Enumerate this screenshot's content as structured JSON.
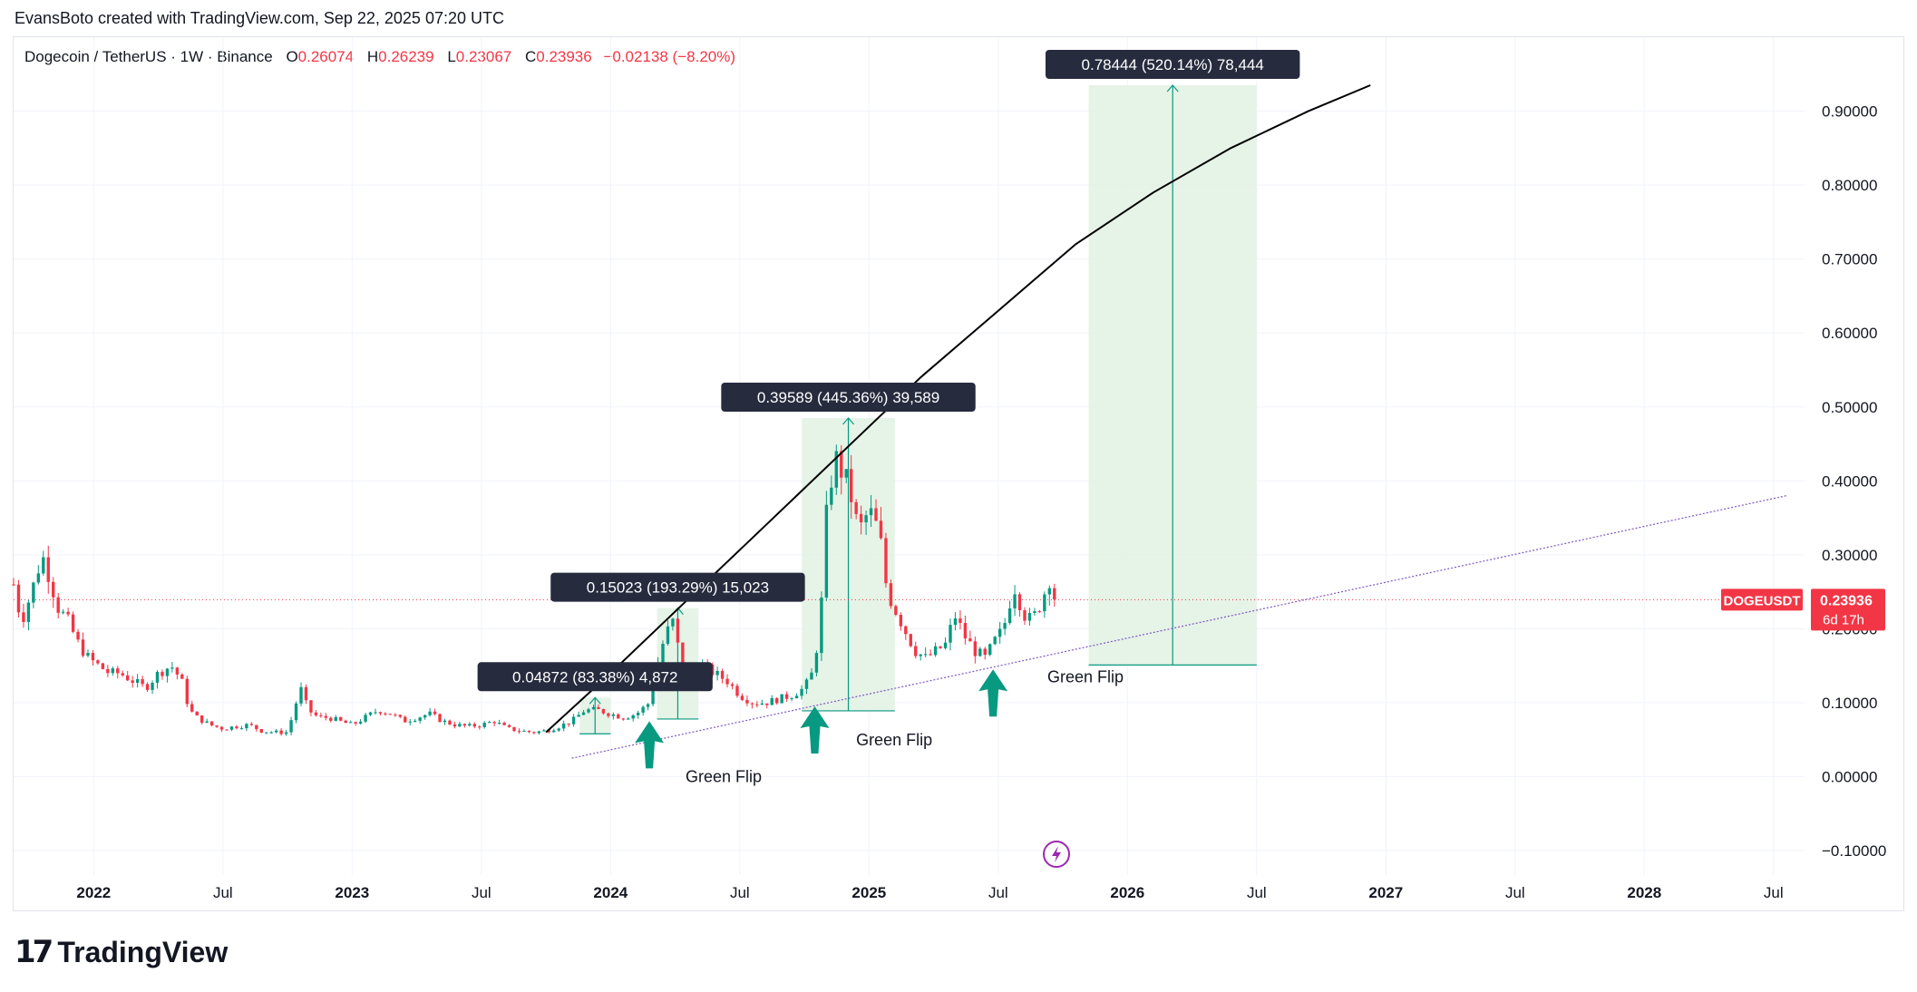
{
  "header": {
    "attribution": "EvansBoto created with TradingView.com, Sep 22, 2025 07:20 UTC"
  },
  "legend": {
    "symbol": "Dogecoin / TetherUS · 1W · Binance",
    "open_label": "O",
    "open": "0.26074",
    "high_label": "H",
    "high": "0.26239",
    "low_label": "L",
    "low": "0.23067",
    "close_label": "C",
    "close": "0.23936",
    "change": "−0.02138 (−8.20%)"
  },
  "price_tag": {
    "ticker": "DOGEUSDT",
    "price": "0.23936",
    "countdown": "6d 17h"
  },
  "footer": {
    "brand": "TradingView"
  },
  "colors": {
    "up": "#089981",
    "down": "#f23645",
    "measure_fill": "#e3f2e4",
    "measure_line": "#089981",
    "curve": "#000000",
    "trendline": "#7e57c2",
    "label_bg": "#262b3e",
    "arrow": "#089981"
  },
  "chart_data": {
    "type": "candlestick",
    "timeframe": "1W",
    "y_ticks": [
      "0.90000",
      "0.80000",
      "0.70000",
      "0.60000",
      "0.50000",
      "0.40000",
      "0.30000",
      "0.20000",
      "0.10000",
      "0.00000",
      "−0.10000"
    ],
    "y_tick_values": [
      0.9,
      0.8,
      0.7,
      0.6,
      0.5,
      0.4,
      0.3,
      0.2,
      0.1,
      0.0,
      -0.1
    ],
    "ylim": [
      -0.133,
      1.0
    ],
    "x_ticks": [
      {
        "label": "2022",
        "t": 2022.0,
        "bold": true
      },
      {
        "label": "Jul",
        "t": 2022.5,
        "bold": false
      },
      {
        "label": "2023",
        "t": 2023.0,
        "bold": true
      },
      {
        "label": "Jul",
        "t": 2023.5,
        "bold": false
      },
      {
        "label": "2024",
        "t": 2024.0,
        "bold": true
      },
      {
        "label": "Jul",
        "t": 2024.5,
        "bold": false
      },
      {
        "label": "2025",
        "t": 2025.0,
        "bold": true
      },
      {
        "label": "Jul",
        "t": 2025.5,
        "bold": false
      },
      {
        "label": "2026",
        "t": 2026.0,
        "bold": true
      },
      {
        "label": "Jul",
        "t": 2026.5,
        "bold": false
      },
      {
        "label": "2027",
        "t": 2027.0,
        "bold": true
      },
      {
        "label": "Jul",
        "t": 2027.5,
        "bold": false
      },
      {
        "label": "2028",
        "t": 2028.0,
        "bold": true
      },
      {
        "label": "Jul",
        "t": 2028.5,
        "bold": false
      }
    ],
    "xlim": [
      2021.69,
      2028.62
    ],
    "price_path": [
      [
        2021.69,
        0.26
      ],
      [
        2021.72,
        0.21
      ],
      [
        2021.76,
        0.25
      ],
      [
        2021.8,
        0.3
      ],
      [
        2021.83,
        0.27
      ],
      [
        2021.86,
        0.23
      ],
      [
        2021.9,
        0.21
      ],
      [
        2021.94,
        0.18
      ],
      [
        2021.98,
        0.16
      ],
      [
        2022.02,
        0.15
      ],
      [
        2022.06,
        0.14
      ],
      [
        2022.1,
        0.14
      ],
      [
        2022.15,
        0.13
      ],
      [
        2022.2,
        0.12
      ],
      [
        2022.25,
        0.14
      ],
      [
        2022.3,
        0.15
      ],
      [
        2022.34,
        0.13
      ],
      [
        2022.37,
        0.09
      ],
      [
        2022.4,
        0.08
      ],
      [
        2022.45,
        0.07
      ],
      [
        2022.5,
        0.065
      ],
      [
        2022.55,
        0.068
      ],
      [
        2022.6,
        0.07
      ],
      [
        2022.65,
        0.062
      ],
      [
        2022.7,
        0.06
      ],
      [
        2022.75,
        0.06
      ],
      [
        2022.8,
        0.12
      ],
      [
        2022.83,
        0.09
      ],
      [
        2022.87,
        0.08
      ],
      [
        2022.91,
        0.08
      ],
      [
        2022.95,
        0.075
      ],
      [
        2023.0,
        0.07
      ],
      [
        2023.05,
        0.08
      ],
      [
        2023.1,
        0.09
      ],
      [
        2023.15,
        0.085
      ],
      [
        2023.2,
        0.075
      ],
      [
        2023.25,
        0.08
      ],
      [
        2023.3,
        0.085
      ],
      [
        2023.35,
        0.075
      ],
      [
        2023.4,
        0.07
      ],
      [
        2023.45,
        0.068
      ],
      [
        2023.5,
        0.07
      ],
      [
        2023.55,
        0.075
      ],
      [
        2023.6,
        0.065
      ],
      [
        2023.65,
        0.062
      ],
      [
        2023.7,
        0.06
      ],
      [
        2023.75,
        0.062
      ],
      [
        2023.8,
        0.068
      ],
      [
        2023.85,
        0.075
      ],
      [
        2023.9,
        0.09
      ],
      [
        2023.95,
        0.09
      ],
      [
        2024.0,
        0.085
      ],
      [
        2024.05,
        0.08
      ],
      [
        2024.1,
        0.085
      ],
      [
        2024.15,
        0.1
      ],
      [
        2024.18,
        0.15
      ],
      [
        2024.21,
        0.19
      ],
      [
        2024.24,
        0.21
      ],
      [
        2024.27,
        0.16
      ],
      [
        2024.3,
        0.14
      ],
      [
        2024.35,
        0.15
      ],
      [
        2024.4,
        0.14
      ],
      [
        2024.45,
        0.13
      ],
      [
        2024.5,
        0.11
      ],
      [
        2024.55,
        0.1
      ],
      [
        2024.6,
        0.1
      ],
      [
        2024.65,
        0.105
      ],
      [
        2024.7,
        0.11
      ],
      [
        2024.75,
        0.12
      ],
      [
        2024.78,
        0.14
      ],
      [
        2024.81,
        0.2
      ],
      [
        2024.84,
        0.38
      ],
      [
        2024.87,
        0.43
      ],
      [
        2024.9,
        0.41
      ],
      [
        2024.93,
        0.38
      ],
      [
        2024.96,
        0.33
      ],
      [
        2025.0,
        0.36
      ],
      [
        2025.04,
        0.33
      ],
      [
        2025.07,
        0.25
      ],
      [
        2025.11,
        0.22
      ],
      [
        2025.15,
        0.19
      ],
      [
        2025.18,
        0.17
      ],
      [
        2025.22,
        0.16
      ],
      [
        2025.26,
        0.17
      ],
      [
        2025.3,
        0.18
      ],
      [
        2025.33,
        0.22
      ],
      [
        2025.37,
        0.19
      ],
      [
        2025.41,
        0.17
      ],
      [
        2025.45,
        0.16
      ],
      [
        2025.48,
        0.18
      ],
      [
        2025.52,
        0.2
      ],
      [
        2025.56,
        0.26
      ],
      [
        2025.6,
        0.22
      ],
      [
        2025.63,
        0.21
      ],
      [
        2025.67,
        0.24
      ],
      [
        2025.7,
        0.27
      ],
      [
        2025.72,
        0.239
      ]
    ],
    "measures": [
      {
        "label": "0.04872 (83.38%) 4,872",
        "t0": 2023.88,
        "t1": 2024.0,
        "p0": 0.058,
        "p1": 0.107
      },
      {
        "label": "0.15023 (193.29%) 15,023",
        "t0": 2024.18,
        "t1": 2024.34,
        "p0": 0.078,
        "p1": 0.228
      },
      {
        "label": "0.39589 (445.36%) 39,589",
        "t0": 2024.74,
        "t1": 2025.1,
        "p0": 0.089,
        "p1": 0.485
      },
      {
        "label": "0.78444 (520.14%) 78,444",
        "t0": 2025.85,
        "t1": 2026.5,
        "p0": 0.151,
        "p1": 0.935
      }
    ],
    "curve": [
      [
        2023.75,
        0.06
      ],
      [
        2024.0,
        0.14
      ],
      [
        2024.3,
        0.24
      ],
      [
        2024.6,
        0.34
      ],
      [
        2024.9,
        0.44
      ],
      [
        2025.2,
        0.54
      ],
      [
        2025.5,
        0.63
      ],
      [
        2025.8,
        0.72
      ],
      [
        2026.1,
        0.79
      ],
      [
        2026.4,
        0.85
      ],
      [
        2026.7,
        0.9
      ],
      [
        2026.94,
        0.935
      ]
    ],
    "trendline": [
      [
        2023.85,
        0.025
      ],
      [
        2028.55,
        0.38
      ]
    ],
    "annotations": [
      {
        "text": "Green Flip",
        "t": 2024.29,
        "p": 0.0
      },
      {
        "text": "Green Flip",
        "t": 2024.95,
        "p": 0.05
      },
      {
        "text": "Green Flip",
        "t": 2025.69,
        "p": 0.135
      }
    ],
    "arrows": [
      {
        "t": 2024.15,
        "p": 0.075
      },
      {
        "t": 2024.79,
        "p": 0.095
      },
      {
        "t": 2025.48,
        "p": 0.145
      }
    ],
    "last_price": 0.23936
  }
}
